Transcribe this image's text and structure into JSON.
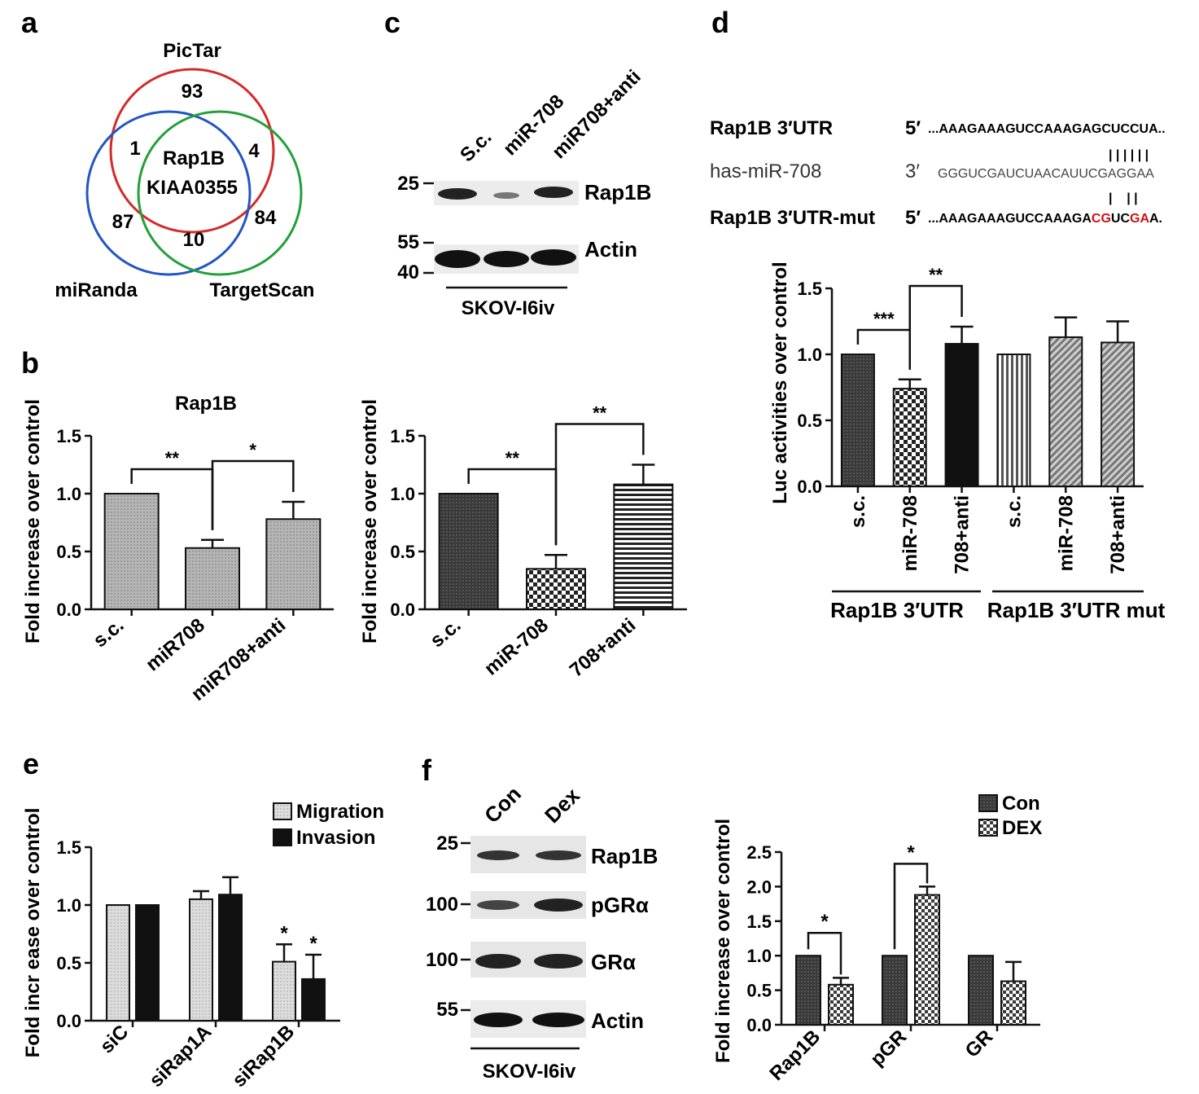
{
  "panels": {
    "a": {
      "label": "a",
      "sets": [
        "PicTar",
        "miRanda",
        "TargetScan"
      ],
      "set_colors": {
        "PicTar": "#d42a2a",
        "miRanda": "#2255c4",
        "TargetScan": "#22a03a"
      },
      "regions": {
        "pictar_only": "93",
        "pictar_miranda": "1",
        "pictar_targetscan": "4",
        "all_three_line1": "Rap1B",
        "all_three_line2": "KIAA0355",
        "miranda_only": "87",
        "targetscan_only": "84",
        "miranda_targetscan": "10"
      }
    },
    "b": {
      "label": "b"
    },
    "c": {
      "label": "c",
      "lanes": [
        "S.c.",
        "miR-708",
        "miR708+anti"
      ],
      "markers": [
        "25",
        "55",
        "40"
      ],
      "bands": [
        "Rap1B",
        "Actin"
      ],
      "cell_line": "SKOV-I6iv"
    },
    "d": {
      "label": "d",
      "seq_rows": [
        {
          "name": "Rap1B 3′UTR",
          "end": "5′",
          "seq_prefix": "...AAAGAAAGUCCAAAGAGCUCCUA..",
          "seq_mut": "",
          "seq_suffix": ""
        },
        {
          "name": "has-miR-708",
          "end": "3′",
          "seq_prefix": "GGGUCGAUCUAACAUUCGAGGAA",
          "seq_mut": "",
          "seq_suffix": ""
        },
        {
          "name": "Rap1B 3′UTR-mut",
          "end": "5′",
          "seq_prefix": "...AAAGAAAGUCCAAAGA",
          "seq_mut": "CG",
          "seq_mid": "UC",
          "seq_mut2": "GA",
          "seq_suffix": "A."
        }
      ],
      "pairing_top": "| | | | | |",
      "pairing_bottom": "|    | |",
      "mut_color": "#d01010",
      "group_labels": [
        "Rap1B 3′UTR",
        "Rap1B 3′UTR mut"
      ]
    },
    "e": {
      "label": "e"
    },
    "f": {
      "label": "f",
      "lanes": [
        "Con",
        "Dex"
      ],
      "markers": [
        "25",
        "100",
        "100",
        "55"
      ],
      "bands": [
        "Rap1B",
        "pGRα",
        "GRα",
        "Actin"
      ],
      "cell_line": "SKOV-I6iv"
    }
  },
  "chart_data": [
    {
      "id": "b1",
      "type": "bar",
      "title": "Rap1B",
      "ylabel": "Fold increase over control",
      "categories": [
        "s.c.",
        "miR708",
        "miR708+anti"
      ],
      "values": [
        1.0,
        0.53,
        0.78
      ],
      "errors": [
        0,
        0.07,
        0.15
      ],
      "ylim": [
        0,
        1.5
      ],
      "yticks": [
        "0.0",
        "0.5",
        "1.0",
        "1.5"
      ],
      "significance": [
        {
          "pair": [
            0,
            1
          ],
          "label": "**"
        },
        {
          "pair": [
            1,
            2
          ],
          "label": "*"
        }
      ]
    },
    {
      "id": "b2",
      "type": "bar",
      "title": "",
      "ylabel": "Fold increase over control",
      "categories": [
        "s.c.",
        "miR-708",
        "708+anti"
      ],
      "values": [
        1.0,
        0.35,
        1.08
      ],
      "errors": [
        0,
        0.12,
        0.17
      ],
      "ylim": [
        0,
        1.5
      ],
      "yticks": [
        "0.0",
        "0.5",
        "1.0",
        "1.5"
      ],
      "significance": [
        {
          "pair": [
            0,
            1
          ],
          "label": "**"
        },
        {
          "pair": [
            1,
            2
          ],
          "label": "**"
        }
      ]
    },
    {
      "id": "d",
      "type": "bar",
      "title": "",
      "ylabel": "Luc activities over control",
      "categories": [
        "s.c.",
        "miR-708",
        "708+anti",
        "s.c.",
        "miR-708",
        "708+anti"
      ],
      "values": [
        1.0,
        0.74,
        1.08,
        1.0,
        1.13,
        1.09
      ],
      "errors": [
        0,
        0.07,
        0.13,
        0,
        0.15,
        0.16
      ],
      "ylim": [
        0,
        1.5
      ],
      "yticks": [
        "0.0",
        "0.5",
        "1.0",
        "1.5"
      ],
      "significance": [
        {
          "pair": [
            0,
            1
          ],
          "label": "***"
        },
        {
          "pair": [
            1,
            2
          ],
          "label": "**"
        }
      ]
    },
    {
      "id": "e",
      "type": "bar",
      "title": "",
      "ylabel": "Fold incr ease over control",
      "categories": [
        "siC",
        "siRap1A",
        "siRap1B"
      ],
      "series": [
        {
          "name": "Migration",
          "values": [
            1.0,
            1.05,
            0.51
          ],
          "errors": [
            0,
            0.07,
            0.15
          ]
        },
        {
          "name": "Invasion",
          "values": [
            1.0,
            1.09,
            0.36
          ],
          "errors": [
            0,
            0.15,
            0.21
          ]
        }
      ],
      "ylim": [
        0,
        1.5
      ],
      "yticks": [
        "0.0",
        "0.5",
        "1.0",
        "1.5"
      ],
      "annotations": [
        {
          "category": 2,
          "series": 0,
          "label": "*"
        },
        {
          "category": 2,
          "series": 1,
          "label": "*"
        }
      ],
      "legend": "top-right"
    },
    {
      "id": "f",
      "type": "bar",
      "title": "",
      "ylabel": "Fold increase over control",
      "categories": [
        "Rap1B",
        "pGR",
        "GR"
      ],
      "series": [
        {
          "name": "Con",
          "values": [
            1.0,
            1.0,
            1.0
          ],
          "errors": [
            0,
            0,
            0
          ]
        },
        {
          "name": "DEX",
          "values": [
            0.58,
            1.88,
            0.63
          ],
          "errors": [
            0.1,
            0.12,
            0.28
          ]
        }
      ],
      "ylim": [
        0,
        2.5
      ],
      "yticks": [
        "0.0",
        "0.5",
        "1.0",
        "1.5",
        "2.0",
        "2.5"
      ],
      "significance": [
        {
          "category": 0,
          "label": "*"
        },
        {
          "category": 1,
          "label": "*"
        }
      ],
      "legend": "top-right"
    }
  ]
}
